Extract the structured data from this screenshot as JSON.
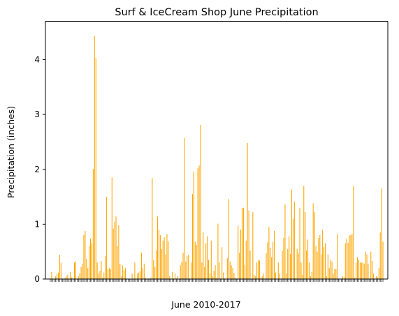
{
  "chart_data": {
    "type": "bar",
    "title": "Surf & IceCream Shop June Precipitation",
    "xlabel": "June 2010-2017",
    "ylabel": "Precipitation (inches)",
    "ylim": [
      0,
      4.7
    ],
    "yticks": [
      0,
      1,
      2,
      3,
      4
    ],
    "grid": false,
    "bar_color": "#FFA500",
    "values": [
      0.01,
      0.13,
      0.0,
      0.0,
      0.05,
      0.1,
      0.12,
      0.44,
      0.3,
      0.0,
      0.0,
      0.02,
      0.05,
      0.08,
      0.0,
      0.13,
      0.03,
      0.0,
      0.3,
      0.32,
      0.0,
      0.05,
      0.1,
      0.22,
      0.28,
      0.8,
      0.88,
      0.37,
      0.2,
      0.6,
      0.74,
      0.65,
      2.01,
      4.43,
      4.03,
      0.3,
      0.1,
      0.15,
      0.33,
      0.02,
      0.12,
      0.42,
      1.5,
      0.18,
      0.2,
      0.18,
      1.85,
      0.92,
      1.05,
      1.14,
      0.6,
      0.98,
      0.28,
      0.05,
      0.25,
      0.16,
      0.2,
      0.0,
      0.0,
      0.0,
      0.0,
      0.1,
      0.0,
      0.3,
      0.0,
      0.1,
      0.12,
      0.15,
      0.48,
      0.2,
      0.28,
      0.02,
      0.0,
      0.0,
      0.0,
      0.02,
      1.84,
      0.35,
      0.22,
      0.52,
      1.14,
      0.9,
      0.8,
      0.55,
      0.7,
      0.76,
      0.45,
      0.82,
      0.68,
      0.05,
      0.0,
      0.13,
      0.0,
      0.1,
      0.0,
      0.05,
      0.0,
      0.25,
      0.31,
      0.48,
      2.57,
      0.32,
      0.42,
      0.44,
      0.0,
      0.3,
      1.55,
      1.96,
      0.68,
      0.62,
      2.02,
      2.07,
      2.81,
      0.3,
      0.85,
      0.22,
      0.65,
      0.78,
      0.35,
      0.1,
      0.7,
      0.05,
      0.15,
      0.25,
      0.02,
      1.01,
      0.3,
      0.0,
      0.58,
      0.12,
      0.0,
      0.0,
      0.38,
      1.46,
      0.32,
      0.25,
      0.2,
      0.11,
      0.02,
      0.0,
      0.97,
      0.48,
      0.9,
      1.3,
      1.3,
      0.26,
      0.7,
      2.48,
      1.25,
      0.52,
      0.0,
      1.22,
      0.08,
      0.05,
      0.3,
      0.34,
      0.34,
      0.02,
      0.05,
      0.1,
      0.0,
      0.47,
      0.67,
      0.95,
      0.57,
      0.4,
      0.68,
      0.88,
      0.12,
      0.0,
      0.3,
      0.1,
      0.0,
      0.51,
      0.75,
      1.36,
      0.1,
      0.55,
      0.78,
      0.46,
      1.63,
      1.1,
      1.41,
      0.02,
      0.55,
      0.47,
      1.3,
      0.3,
      0.08,
      1.7,
      1.22,
      0.52,
      0.72,
      0.3,
      0.05,
      0.13,
      1.38,
      1.22,
      0.6,
      0.5,
      0.75,
      0.8,
      0.45,
      0.9,
      0.58,
      0.65,
      0.05,
      0.45,
      0.2,
      0.35,
      0.32,
      0.1,
      0.18,
      0.18,
      0.82,
      0.0,
      0.0,
      0.0,
      0.05,
      0.03,
      0.65,
      0.73,
      0.66,
      0.8,
      0.8,
      0.82,
      1.7,
      0.02,
      0.3,
      0.4,
      0.35,
      0.3,
      0.3,
      0.3,
      0.28,
      0.5,
      0.45,
      0.28,
      0.0,
      0.5,
      0.33,
      0.1,
      0.0,
      0.05,
      0.03,
      0.2,
      0.85,
      1.65,
      0.68
    ]
  }
}
